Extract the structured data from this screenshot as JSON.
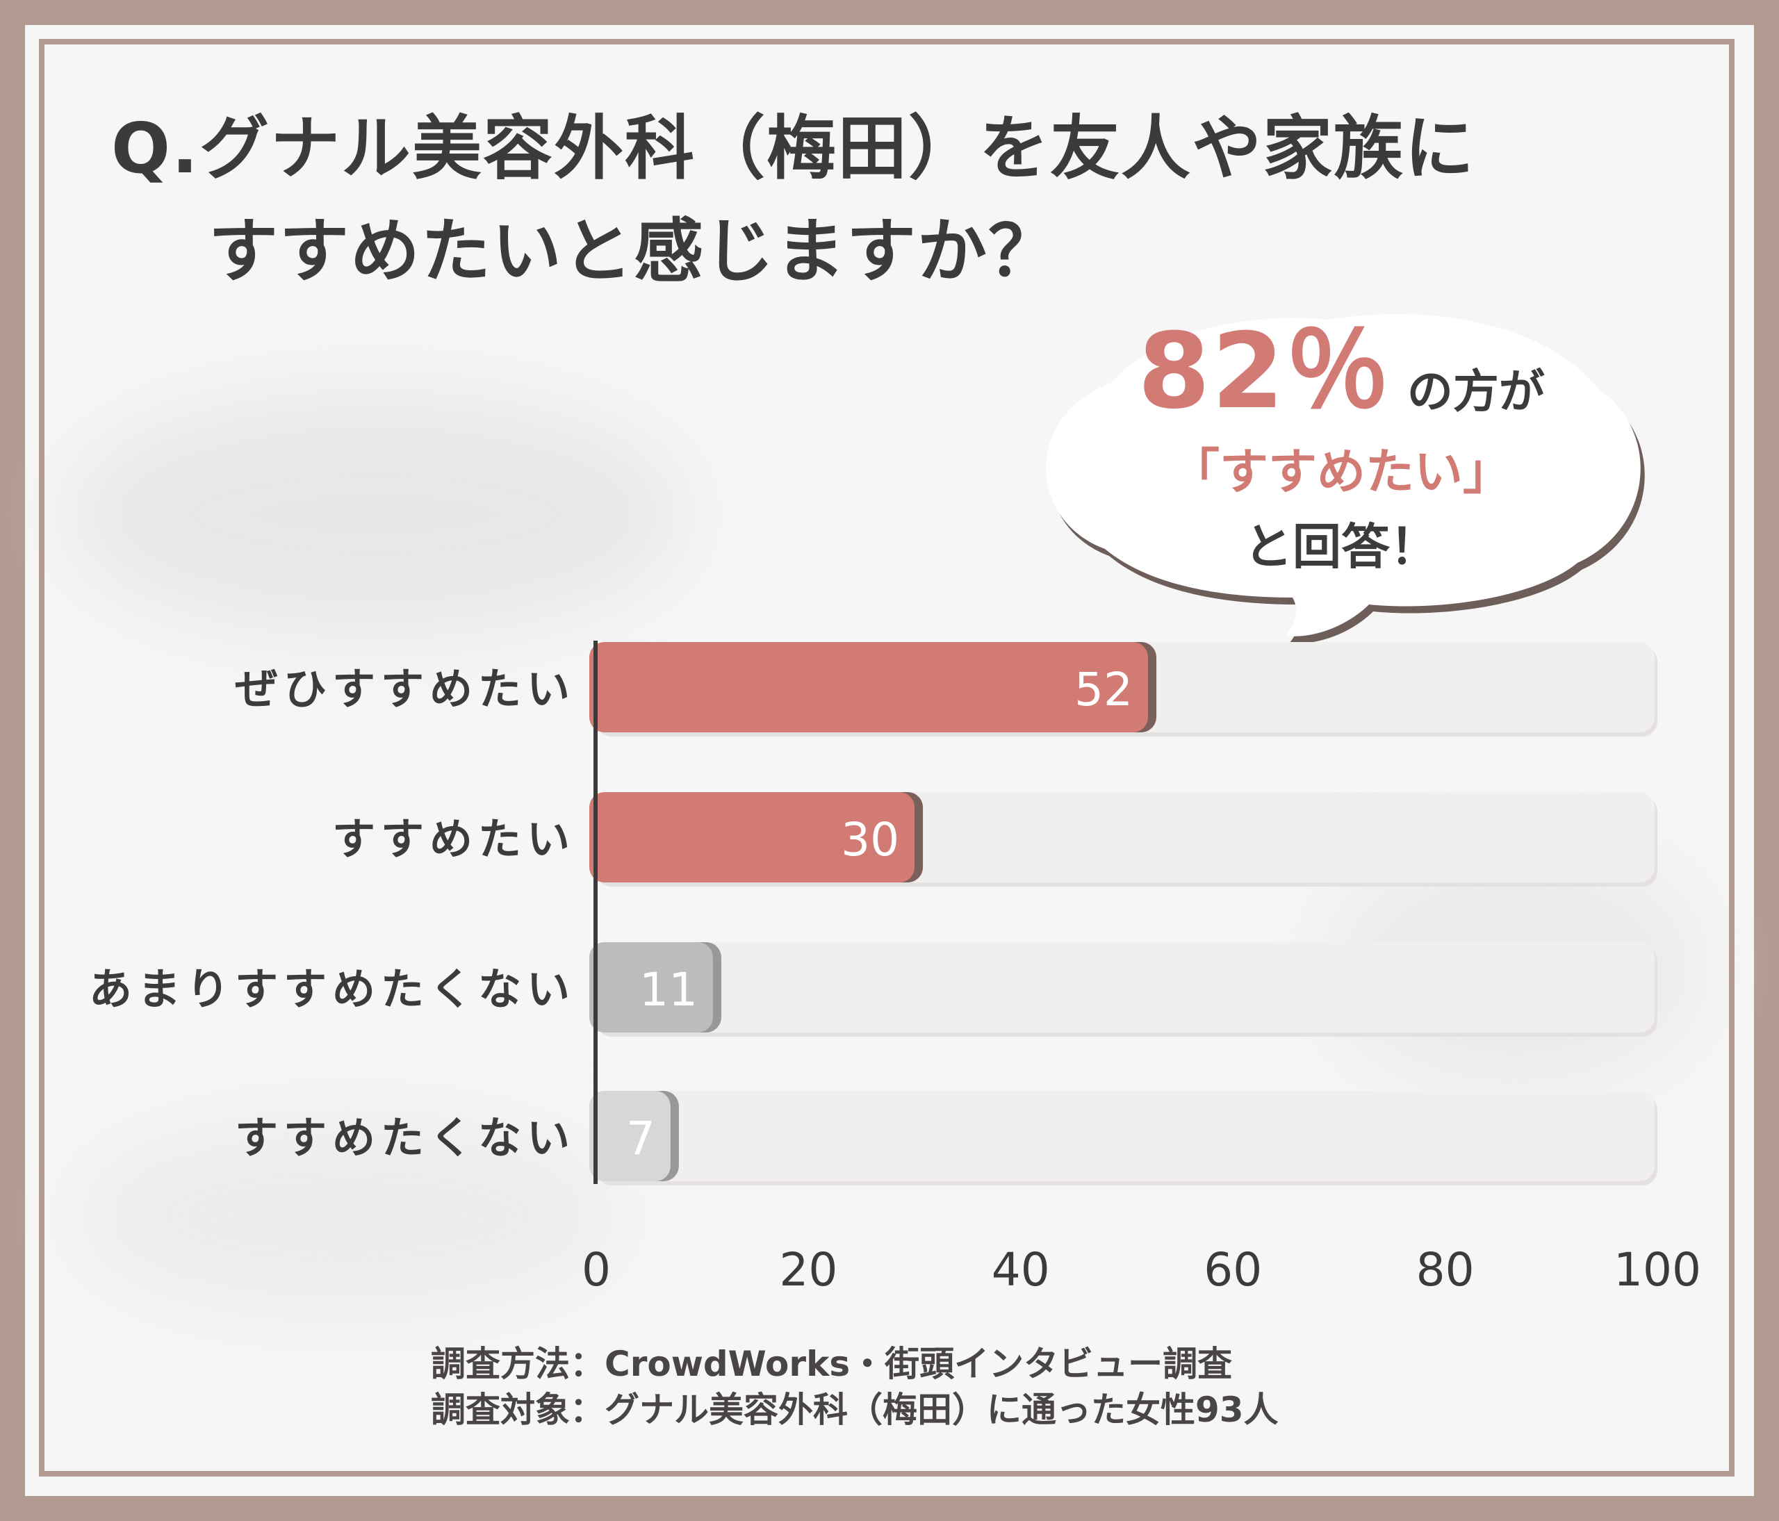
{
  "title_line1": "Q.グナル美容外科（梅田）を友人や家族に",
  "title_line2": "すすめたいと感じますか？",
  "callout": {
    "percent": "82％",
    "suffix": "の方が",
    "quote": "「すすめたい」",
    "answer": "と回答！"
  },
  "colors": {
    "positive": "#d27a74",
    "negative_1": "#bdbbbb",
    "negative_2": "#d8d7d7",
    "track": "#f1efee",
    "frame": "#b29a91"
  },
  "chart_data": {
    "type": "bar",
    "orientation": "horizontal",
    "title": "",
    "xlabel": "",
    "ylabel": "",
    "xlim": [
      0,
      100
    ],
    "ticks": [
      0,
      20,
      40,
      60,
      80,
      100
    ],
    "grid": false,
    "legend": "none",
    "categories": [
      "ぜひすすめたい",
      "すすめたい",
      "あまりすすめたくない",
      "すすめたくない"
    ],
    "values": [
      52,
      30,
      11,
      7
    ],
    "bar_colors": [
      "#d27a74",
      "#d27a74",
      "#bdbbbb",
      "#d8d7d7"
    ]
  },
  "footnote": {
    "method": "調査方法：CrowdWorks・街頭インタビュー調査",
    "target": "調査対象：グナル美容外科（梅田）に通った女性93人"
  }
}
